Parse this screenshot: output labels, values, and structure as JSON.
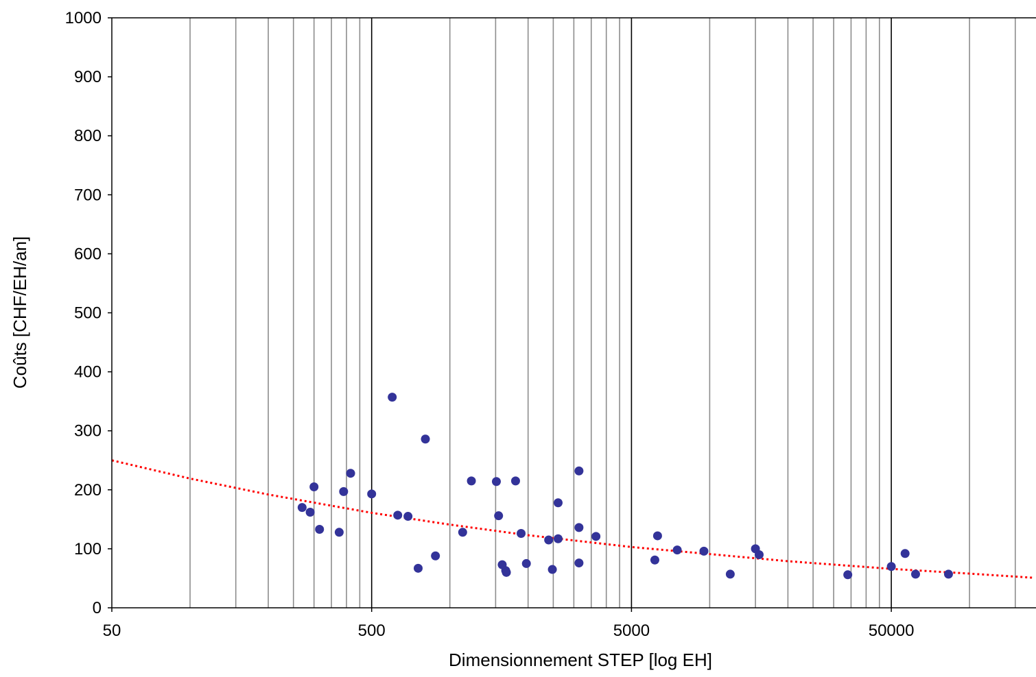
{
  "chart_data": {
    "type": "scatter",
    "xlabel": "Dimensionnement STEP [log EH]",
    "ylabel": "Coûts [CHF/EH/an]",
    "x_scale": "log",
    "xlim": [
      50,
      175000
    ],
    "ylim": [
      0,
      1000
    ],
    "x_ticks": [
      "50",
      "500",
      "5000",
      "50000"
    ],
    "y_ticks": [
      "0",
      "100",
      "200",
      "300",
      "400",
      "500",
      "600",
      "700",
      "800",
      "900",
      "1000"
    ],
    "grid": "vertical minor (gray) and decade (black) lines",
    "marker_color": "#333399",
    "trend_color": "#ff0000",
    "points": [
      {
        "x": 270,
        "y": 170
      },
      {
        "x": 290,
        "y": 162
      },
      {
        "x": 300,
        "y": 205
      },
      {
        "x": 315,
        "y": 133
      },
      {
        "x": 375,
        "y": 128
      },
      {
        "x": 390,
        "y": 197
      },
      {
        "x": 415,
        "y": 228
      },
      {
        "x": 500,
        "y": 193
      },
      {
        "x": 600,
        "y": 357
      },
      {
        "x": 630,
        "y": 157
      },
      {
        "x": 690,
        "y": 155
      },
      {
        "x": 755,
        "y": 67
      },
      {
        "x": 805,
        "y": 286
      },
      {
        "x": 880,
        "y": 88
      },
      {
        "x": 1120,
        "y": 128
      },
      {
        "x": 1210,
        "y": 215
      },
      {
        "x": 1510,
        "y": 214
      },
      {
        "x": 1540,
        "y": 156
      },
      {
        "x": 1590,
        "y": 73
      },
      {
        "x": 1640,
        "y": 63
      },
      {
        "x": 1650,
        "y": 60
      },
      {
        "x": 1790,
        "y": 215
      },
      {
        "x": 1880,
        "y": 126
      },
      {
        "x": 1970,
        "y": 75
      },
      {
        "x": 2400,
        "y": 115
      },
      {
        "x": 2480,
        "y": 65
      },
      {
        "x": 2610,
        "y": 178
      },
      {
        "x": 2610,
        "y": 117
      },
      {
        "x": 3140,
        "y": 232
      },
      {
        "x": 3140,
        "y": 136
      },
      {
        "x": 3140,
        "y": 76
      },
      {
        "x": 3650,
        "y": 121
      },
      {
        "x": 6150,
        "y": 81
      },
      {
        "x": 6300,
        "y": 122
      },
      {
        "x": 7500,
        "y": 98
      },
      {
        "x": 9500,
        "y": 96
      },
      {
        "x": 12000,
        "y": 57
      },
      {
        "x": 15000,
        "y": 100
      },
      {
        "x": 15500,
        "y": 90
      },
      {
        "x": 34000,
        "y": 56
      },
      {
        "x": 50000,
        "y": 70
      },
      {
        "x": 56500,
        "y": 92
      },
      {
        "x": 62000,
        "y": 57
      },
      {
        "x": 83000,
        "y": 57
      }
    ],
    "trendline": {
      "type": "power",
      "x": [
        50,
        100,
        200,
        500,
        1000,
        2000,
        5000,
        10000,
        20000,
        50000,
        100000,
        175000
      ],
      "y": [
        250,
        219,
        192,
        161,
        141,
        123,
        103,
        91,
        79,
        66,
        58,
        51
      ]
    }
  }
}
